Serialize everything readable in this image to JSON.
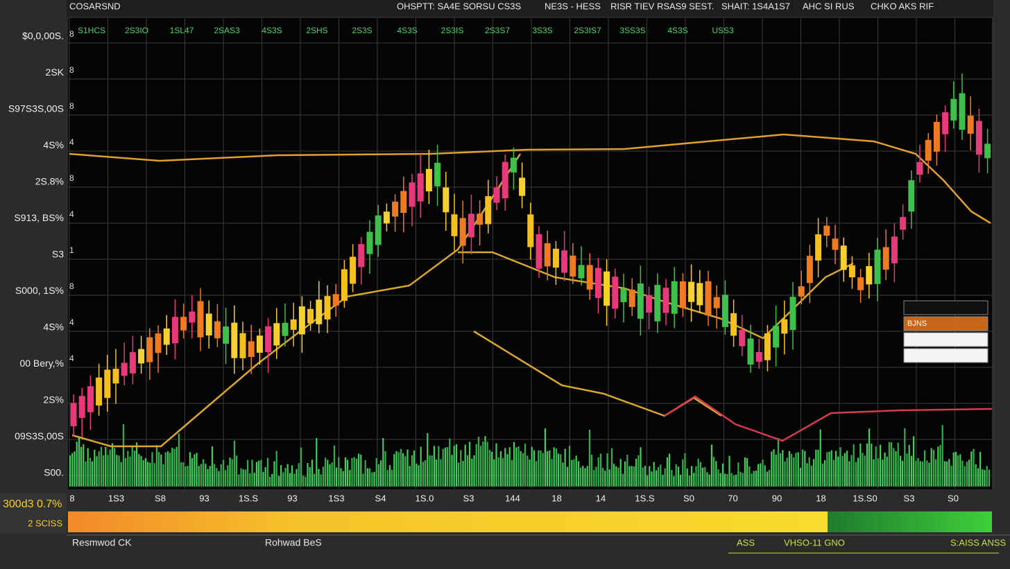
{
  "header": {
    "title": "COSARSND",
    "items": [
      "OHSPTT:  SA4E SORSU CS3S",
      "NE3S - HESS",
      "RISR TIEV RSAS9 SEST.",
      "SHAIT: 1S4A1S7",
      "AHC SI RUS",
      "CHKO AKS RIF"
    ]
  },
  "top_labels": [
    "S1HCS",
    "2S3IO",
    "1SL47",
    "2SAS3",
    "4S3S",
    "2SHS",
    "2S3S",
    "4S3S",
    "2S3IS",
    "2S3S7",
    "3S3S",
    "2S3IS7",
    "3SS3S",
    "4S3S",
    "USS3"
  ],
  "left_labels": [
    "$0,0,00S.",
    "2SK",
    "S97S3S,00S",
    "4S%",
    "2S.8%",
    "S913, BS%",
    "S3",
    "S000, 1S%",
    "4S%",
    "00 Bery,%",
    "2S%",
    "09S3S,00S",
    "S00."
  ],
  "right_marks": [
    "8",
    "8",
    "8",
    "4",
    "8",
    "4",
    "1",
    "8",
    "4",
    "4"
  ],
  "x_labels": [
    "8",
    "1S3",
    "S8",
    "93",
    "1S.S",
    "93",
    "1S3",
    "S4",
    "1S.0",
    "S3",
    "144",
    "18",
    "14",
    "1S.S",
    "S0",
    "70",
    "90",
    "18",
    "1S.S0",
    "S3",
    "S0"
  ],
  "status": {
    "top": "300d3 0.7%",
    "bottom": "2 SCISS"
  },
  "legend": [
    "BJNS"
  ],
  "footer": [
    "Resmwod CK",
    "Rohwad BeS",
    "ASS",
    "VHSO-11 GNO",
    "S:AISS ANSS"
  ]
}
